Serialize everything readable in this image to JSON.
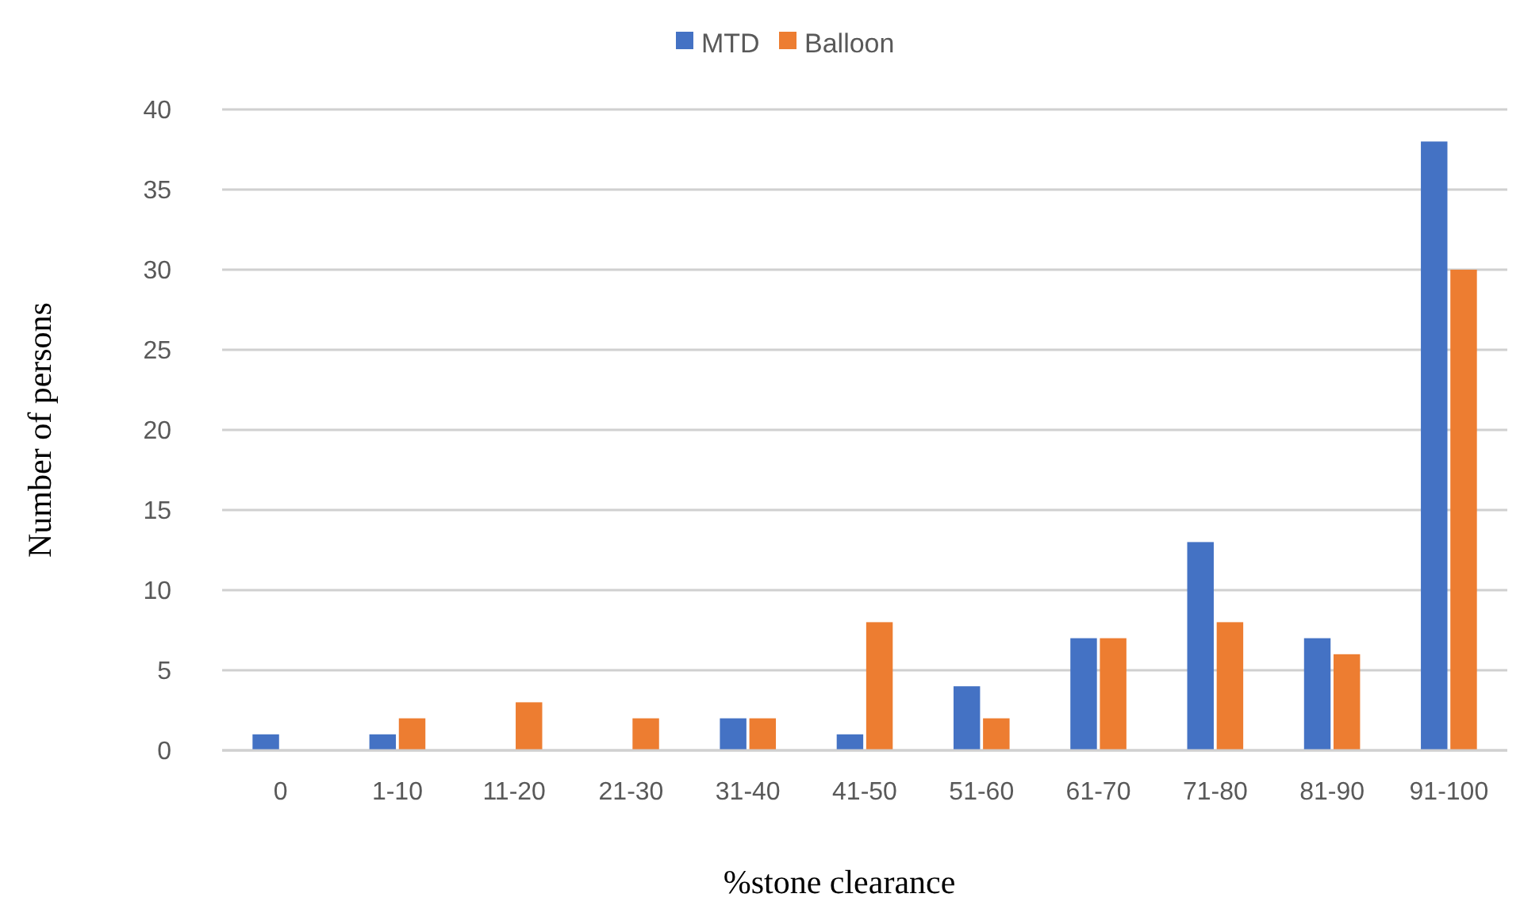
{
  "chart_data": {
    "type": "bar",
    "xlabel": "%stone clearance",
    "ylabel": "Number of persons",
    "categories": [
      "0",
      "1-10",
      "11-20",
      "21-30",
      "31-40",
      "41-50",
      "51-60",
      "61-70",
      "71-80",
      "81-90",
      "91-100"
    ],
    "series": [
      {
        "name": "MTD",
        "color": "#4472c4",
        "values": [
          1,
          1,
          0,
          0,
          2,
          1,
          4,
          7,
          13,
          7,
          38
        ]
      },
      {
        "name": "Balloon",
        "color": "#ed7d31",
        "values": [
          0,
          2,
          3,
          2,
          2,
          8,
          2,
          7,
          8,
          6,
          30
        ]
      }
    ],
    "ylim": [
      0,
      40
    ],
    "yticks": [
      0,
      5,
      10,
      15,
      20,
      25,
      30,
      35,
      40
    ],
    "grid": "y",
    "legend": "top"
  }
}
